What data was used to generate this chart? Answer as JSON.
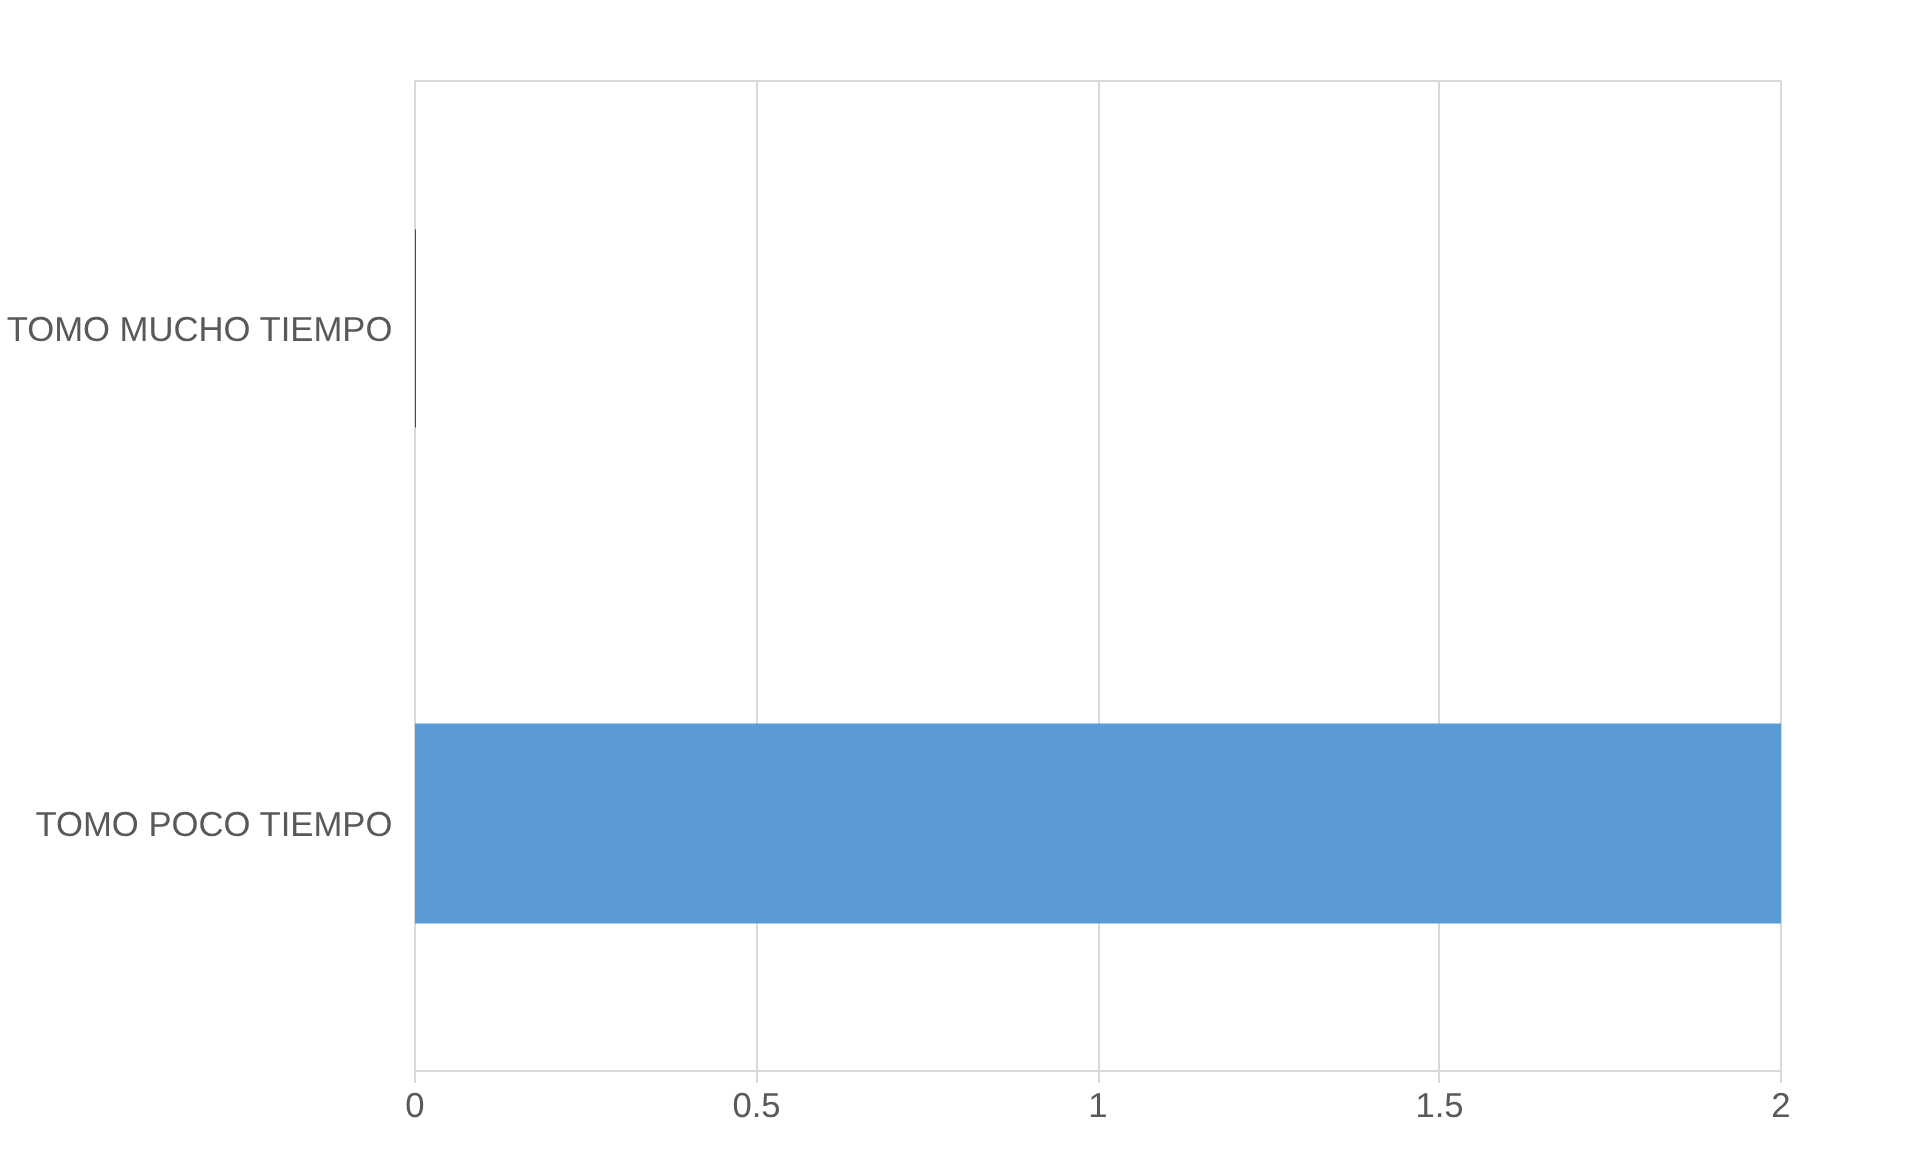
{
  "chart_data": {
    "type": "bar",
    "orientation": "horizontal",
    "categories": [
      "TOMO MUCHO TIEMPO",
      "TOMO POCO TIEMPO"
    ],
    "values": [
      0,
      2
    ],
    "colors": [
      "#375623",
      "#5b9bd5"
    ],
    "xlim": [
      0,
      2
    ],
    "xticks": [
      0,
      0.5,
      1,
      1.5,
      2
    ],
    "grid": "x"
  }
}
